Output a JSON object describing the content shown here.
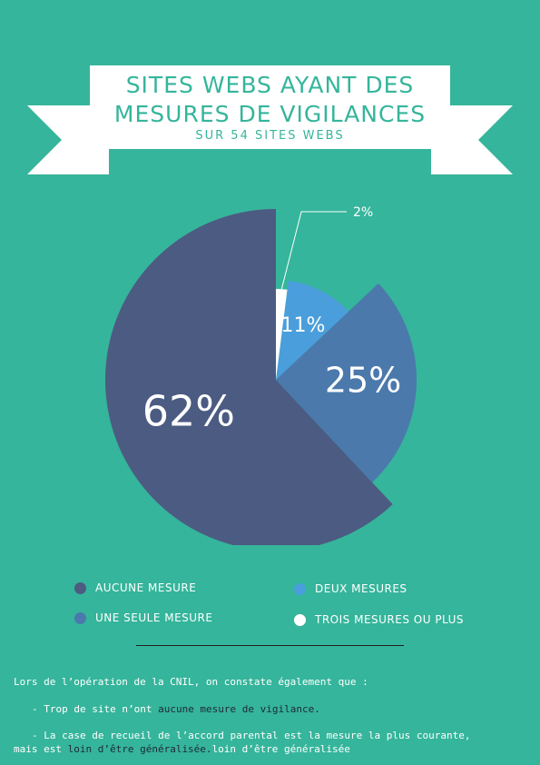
{
  "header": {
    "title_line1": "SITES WEBS AYANT DES",
    "title_line2": "MESURES DE VIGILANCES",
    "subtitle": "SUR 54 SITES WEBS"
  },
  "chart_data": {
    "type": "pie",
    "title": "SITES WEBS AYANT DES MESURES DE VIGILANCES",
    "subtitle": "SUR 54 SITES WEBS",
    "slices": [
      {
        "label": "AUCUNE MESURE",
        "value": 62,
        "text": "62%",
        "color": "#4c5b82"
      },
      {
        "label": "UNE SEULE MESURE",
        "value": 25,
        "text": "25%",
        "color": "#4b79ac"
      },
      {
        "label": "DEUX MESURES",
        "value": 11,
        "text": "11%",
        "color": "#4a9edb"
      },
      {
        "label": "TROIS MESURES OU PLUS",
        "value": 2,
        "text": "2%",
        "color": "#ffffff"
      }
    ],
    "legend_position": "bottom"
  },
  "legend": [
    {
      "label": "AUCUNE MESURE",
      "color": "#4c5b82"
    },
    {
      "label": "DEUX MESURES",
      "color": "#4a9edb"
    },
    {
      "label": "UNE SEULE MESURE",
      "color": "#4b79ac"
    },
    {
      "label": "TROIS MESURES OU PLUS",
      "color": "#ffffff"
    }
  ],
  "notes": {
    "intro": "Lors de l’opération de la CNIL, on constate également que :",
    "bullet1_pre": "- Trop de site n’ont ",
    "bullet1_em": "aucune mesure de vigilance.",
    "bullet2_line1": "- La case de recueil de l’accord parental est la mesure la plus courante,",
    "bullet2_line2_pre": "mais est ",
    "bullet2_em": "loin d’être généralisée.",
    "bullet2_tail": "loin d’être généralisée"
  },
  "colors": {
    "background": "#35b59b",
    "banner_text": "#35b59b",
    "ribbon": "#ffffff"
  }
}
